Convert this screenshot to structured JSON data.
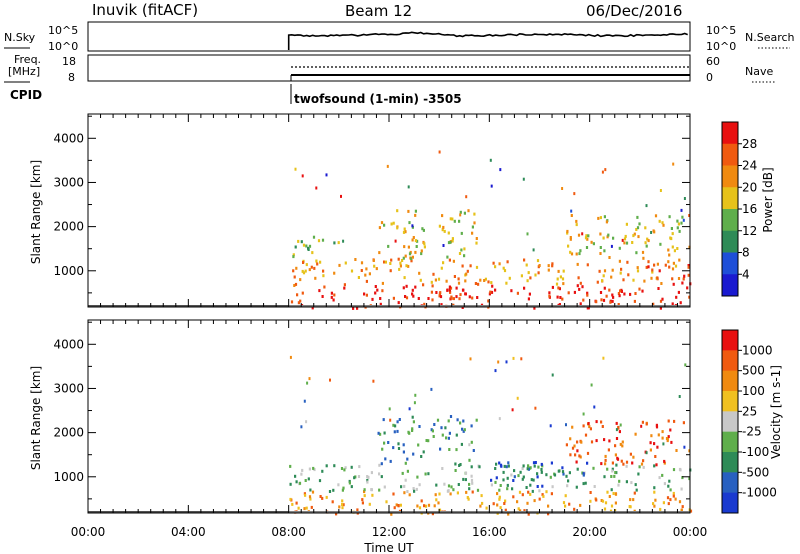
{
  "header": {
    "station": "Inuvik (fitACF)",
    "beam": "Beam 12",
    "date": "06/Dec/2016"
  },
  "strips": {
    "nsky_label": "N.Sky",
    "nsky_ticks": [
      "10^5",
      "10^0"
    ],
    "nsearch_label": "N.Search",
    "nsearch_ticks": [
      "10^5",
      "10^0"
    ],
    "freq_label_1": "Freq.",
    "freq_label_2": "[MHz]",
    "freq_ticks": [
      "18",
      "8"
    ],
    "nave_label": "Nave",
    "nave_ticks": [
      "60",
      "0"
    ],
    "cpid_label": "CPID",
    "cpid_text": "twofsound (1-min) -3505"
  },
  "chart_data": [
    {
      "type": "heatmap",
      "name": "power",
      "ylabel": "Slant Range [km]",
      "yticks": [
        1000,
        2000,
        3000,
        4000
      ],
      "ylim": [
        180,
        4550
      ],
      "xlim": [
        0,
        24
      ],
      "colorbar": {
        "label": "Power [dB]",
        "ticks": [
          "4",
          "8",
          "12",
          "16",
          "20",
          "24",
          "28"
        ],
        "colors": [
          "#1a1ad0",
          "#1e4fd8",
          "#2e8b57",
          "#5fae4b",
          "#e6c21a",
          "#f08a10",
          "#f05a10",
          "#e81010"
        ]
      },
      "data_start_hour": 8.0,
      "regions": [
        {
          "t0": 8.0,
          "t1": 24.0,
          "r0": 180,
          "r1": 700,
          "level": 7
        },
        {
          "t0": 8.0,
          "t1": 24.0,
          "r0": 700,
          "r1": 1300,
          "level": 5
        },
        {
          "t0": 8.0,
          "t1": 10.0,
          "r0": 1300,
          "r1": 1800,
          "level": 3
        },
        {
          "t0": 11.5,
          "t1": 15.5,
          "r0": 1300,
          "r1": 2400,
          "level": 4
        },
        {
          "t0": 19.0,
          "t1": 24.0,
          "r0": 1300,
          "r1": 2300,
          "level": 4
        },
        {
          "t0": 13.0,
          "t1": 15.5,
          "r0": 180,
          "r1": 600,
          "level": 7
        },
        {
          "t0": 22.0,
          "t1": 24.0,
          "r0": 700,
          "r1": 1200,
          "level": 6
        }
      ]
    },
    {
      "type": "heatmap",
      "name": "velocity",
      "ylabel": "Slant Range [km]",
      "yticks": [
        1000,
        2000,
        3000,
        4000
      ],
      "ylim": [
        180,
        4550
      ],
      "xlim": [
        0,
        24
      ],
      "xticks": [
        "00:00",
        "04:00",
        "08:00",
        "12:00",
        "16:00",
        "20:00",
        "00:00"
      ],
      "xlabel": "Time UT",
      "colorbar": {
        "label": "Velocity [m s-1]",
        "ticks": [
          "1000",
          "500",
          "100",
          "25",
          "-25",
          "-100",
          "-500",
          "-1000"
        ],
        "colors": [
          "#1a3ad0",
          "#2860c0",
          "#2e8b57",
          "#5fae4b",
          "#c8c8c8",
          "#f0c020",
          "#f08a10",
          "#f05a10",
          "#e81010"
        ]
      },
      "data_start_hour": 8.0,
      "regions": [
        {
          "t0": 8.0,
          "t1": 24.0,
          "r0": 180,
          "r1": 700,
          "level": 6
        },
        {
          "t0": 8.0,
          "t1": 24.0,
          "r0": 700,
          "r1": 1300,
          "level": 3
        },
        {
          "t0": 11.5,
          "t1": 15.5,
          "r0": 1300,
          "r1": 2400,
          "level": 2
        },
        {
          "t0": 19.0,
          "t1": 24.0,
          "r0": 1300,
          "r1": 2300,
          "level": 7
        },
        {
          "t0": 16.0,
          "t1": 20.0,
          "r0": 800,
          "r1": 1400,
          "level": 1
        }
      ]
    }
  ]
}
